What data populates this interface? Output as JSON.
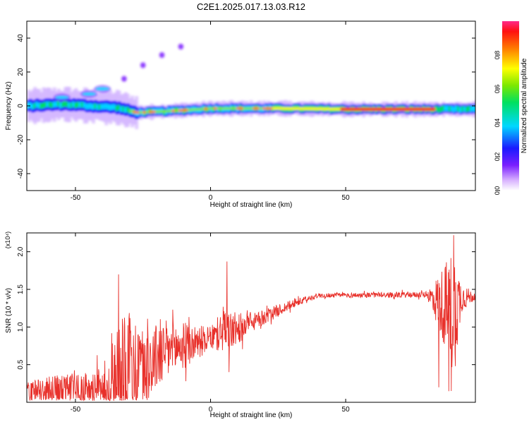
{
  "page_title": "C2E1.2025.017.13.03.R12",
  "chart_data": [
    {
      "type": "heatmap",
      "title": "",
      "xlabel": "Height of straight line (km)",
      "ylabel": "Frequency (Hz)",
      "xlim": [
        -68,
        98
      ],
      "ylim": [
        -50,
        50
      ],
      "xticks": [
        -50,
        0,
        50
      ],
      "yticks": [
        -40,
        -20,
        0,
        20,
        40
      ],
      "colorbar": {
        "label": "Normalized spectral amplitude",
        "range": [
          0,
          1
        ],
        "ticks": [
          "0.0",
          "0.2",
          "0.4",
          "0.6",
          "0.8"
        ]
      },
      "ridge": [
        {
          "x": -68,
          "y": 0
        },
        {
          "x": -55,
          "y": 1
        },
        {
          "x": -45,
          "y": 0
        },
        {
          "x": -35,
          "y": -1
        },
        {
          "x": -28,
          "y": -4
        },
        {
          "x": -15,
          "y": -3
        },
        {
          "x": 0,
          "y": -1.5
        },
        {
          "x": 25,
          "y": -1.5
        },
        {
          "x": 50,
          "y": -2
        },
        {
          "x": 80,
          "y": -2
        },
        {
          "x": 98,
          "y": -2
        }
      ],
      "upper_branch": [
        {
          "x": -55,
          "y": 5
        },
        {
          "x": -45,
          "y": 7
        },
        {
          "x": -40,
          "y": 10
        },
        {
          "x": -32,
          "y": 16
        },
        {
          "x": -25,
          "y": 24
        },
        {
          "x": -18,
          "y": 30
        },
        {
          "x": -11,
          "y": 35
        }
      ]
    },
    {
      "type": "line",
      "title": "",
      "xlabel": "Height of straight line (km)",
      "ylabel": "SNR (10 * v/v)",
      "y_multiplier": "(x10⁴)",
      "xlim": [
        -68,
        98
      ],
      "ylim": [
        0,
        2.25
      ],
      "xticks": [
        -50,
        0,
        50
      ],
      "yticks": [
        "0.5",
        "1.0",
        "1.5",
        "2.0"
      ],
      "line_color": "#e8302a",
      "envelope": [
        {
          "x": -68,
          "base": 0.15,
          "amp": 0.15
        },
        {
          "x": -40,
          "base": 0.2,
          "amp": 0.25
        },
        {
          "x": -36,
          "base": 0.3,
          "amp": 0.7
        },
        {
          "x": -33,
          "base": 0.5,
          "amp": 0.9
        },
        {
          "x": -25,
          "base": 0.5,
          "amp": 0.5
        },
        {
          "x": -15,
          "base": 0.7,
          "amp": 0.4
        },
        {
          "x": 0,
          "base": 0.85,
          "amp": 0.15
        },
        {
          "x": 5,
          "base": 0.95,
          "amp": 0.3
        },
        {
          "x": 8,
          "base": 0.95,
          "amp": 0.25
        },
        {
          "x": 15,
          "base": 1.05,
          "amp": 0.12
        },
        {
          "x": 30,
          "base": 1.3,
          "amp": 0.06
        },
        {
          "x": 40,
          "base": 1.42,
          "amp": 0.03
        },
        {
          "x": 80,
          "base": 1.43,
          "amp": 0.04
        },
        {
          "x": 86,
          "base": 1.3,
          "amp": 0.5
        },
        {
          "x": 90,
          "base": 1.2,
          "amp": 0.9
        },
        {
          "x": 93,
          "base": 1.4,
          "amp": 0.2
        },
        {
          "x": 98,
          "base": 1.4,
          "amp": 0.03
        }
      ],
      "spikes": [
        {
          "x": -34,
          "y": 1.7
        },
        {
          "x": 6,
          "y": 1.87
        },
        {
          "x": 6.8,
          "y": 0.4
        },
        {
          "x": 89,
          "y": 0.15
        },
        {
          "x": 90,
          "y": 2.22
        },
        {
          "x": 84.5,
          "y": 0.2
        }
      ]
    }
  ]
}
